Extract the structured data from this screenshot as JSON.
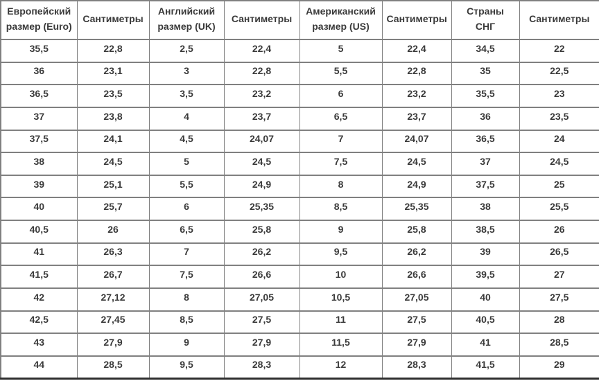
{
  "page": {
    "background": "#ffffff"
  },
  "style": {
    "border_color": "#808080",
    "outer_edge_dark_color": "#2e2e2e",
    "text_color": "#3a3a3a",
    "background": "#ffffff"
  },
  "chart_data": {
    "type": "table",
    "title": "",
    "columns": [
      "Европейский размер (Euro)",
      "Сантиметры",
      "Английский размер (UK)",
      "Сантиметры",
      "Американский размер (US)",
      "Сантиметры",
      "Страны СНГ",
      "Сантиметры"
    ],
    "rows": [
      [
        "35,5",
        "22,8",
        "2,5",
        "22,4",
        "5",
        "22,4",
        "34,5",
        "22"
      ],
      [
        "36",
        "23,1",
        "3",
        "22,8",
        "5,5",
        "22,8",
        "35",
        "22,5"
      ],
      [
        "36,5",
        "23,5",
        "3,5",
        "23,2",
        "6",
        "23,2",
        "35,5",
        "23"
      ],
      [
        "37",
        "23,8",
        "4",
        "23,7",
        "6,5",
        "23,7",
        "36",
        "23,5"
      ],
      [
        "37,5",
        "24,1",
        "4,5",
        "24,07",
        "7",
        "24,07",
        "36,5",
        "24"
      ],
      [
        "38",
        "24,5",
        "5",
        "24,5",
        "7,5",
        "24,5",
        "37",
        "24,5"
      ],
      [
        "39",
        "25,1",
        "5,5",
        "24,9",
        "8",
        "24,9",
        "37,5",
        "25"
      ],
      [
        "40",
        "25,7",
        "6",
        "25,35",
        "8,5",
        "25,35",
        "38",
        "25,5"
      ],
      [
        "40,5",
        "26",
        "6,5",
        "25,8",
        "9",
        "25,8",
        "38,5",
        "26"
      ],
      [
        "41",
        "26,3",
        "7",
        "26,2",
        "9,5",
        "26,2",
        "39",
        "26,5"
      ],
      [
        "41,5",
        "26,7",
        "7,5",
        "26,6",
        "10",
        "26,6",
        "39,5",
        "27"
      ],
      [
        "42",
        "27,12",
        "8",
        "27,05",
        "10,5",
        "27,05",
        "40",
        "27,5"
      ],
      [
        "42,5",
        "27,45",
        "8,5",
        "27,5",
        "11",
        "27,5",
        "40,5",
        "28"
      ],
      [
        "43",
        "27,9",
        "9",
        "27,9",
        "11,5",
        "27,9",
        "41",
        "28,5"
      ],
      [
        "44",
        "28,5",
        "9,5",
        "28,3",
        "12",
        "28,3",
        "41,5",
        "29"
      ]
    ]
  }
}
